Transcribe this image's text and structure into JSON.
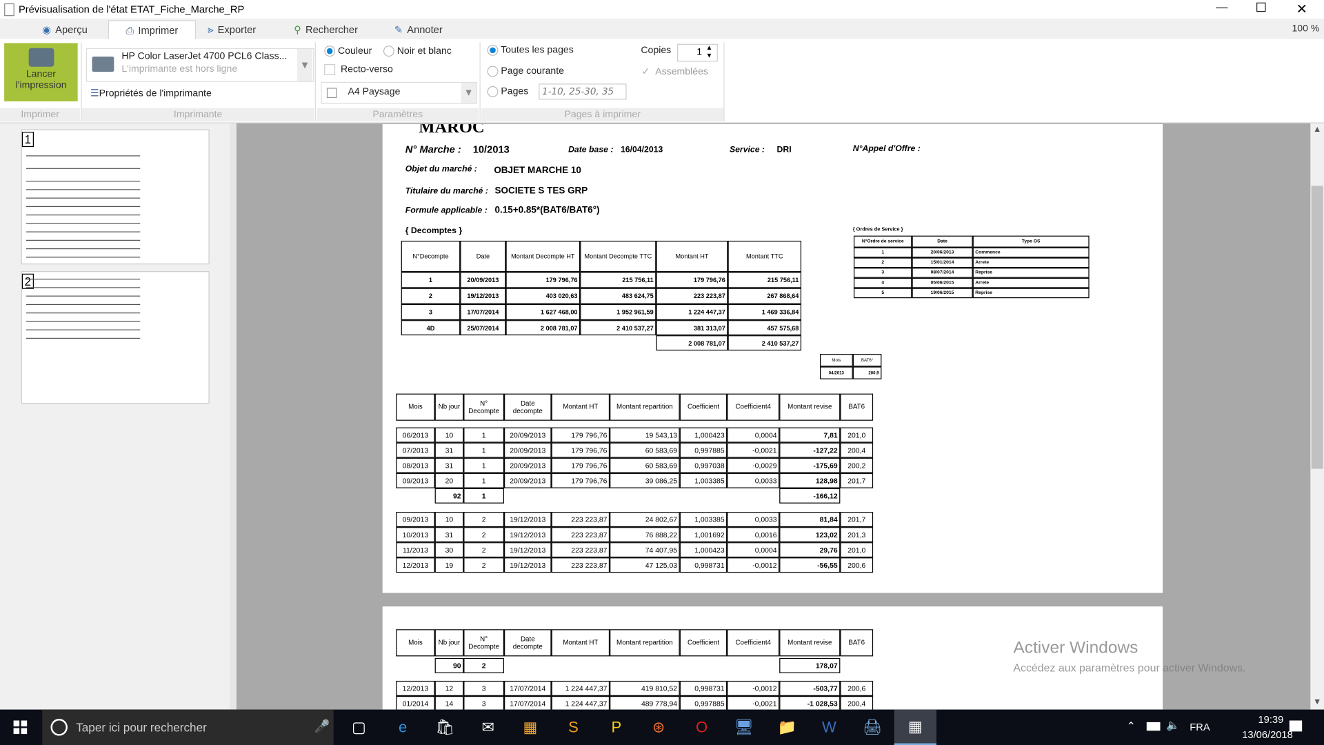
{
  "window": {
    "title": "Prévisualisation de l'état ETAT_Fiche_Marche_RP",
    "zoom": "100 %"
  },
  "tabs": [
    {
      "label": "Aperçu",
      "icon": "eye-icon"
    },
    {
      "label": "Imprimer",
      "icon": "printer-icon",
      "active": true
    },
    {
      "label": "Exporter",
      "icon": "share-icon"
    },
    {
      "label": "Rechercher",
      "icon": "search-icon"
    },
    {
      "label": "Annoter",
      "icon": "pen-icon"
    }
  ],
  "ribbon": {
    "print_button": "Lancer l'impression",
    "printer_name": "HP Color LaserJet 4700 PCL6 Class...",
    "printer_status": "L'imprimante est hors ligne",
    "printer_properties": "Propriétés de l'imprimante",
    "color": "Couleur",
    "bw": "Noir et blanc",
    "duplex": "Recto-verso",
    "paper": "A4 Paysage",
    "all_pages": "Toutes les pages",
    "current_page": "Page courante",
    "pages": "Pages",
    "pages_placeholder": "1-10, 25-30, 35",
    "copies_label": "Copies",
    "copies_value": "1",
    "collated": "Assemblées",
    "groups": [
      "Imprimer",
      "Imprimante",
      "Paramètres",
      "Pages à imprimer"
    ],
    "accent": "#a6c23a"
  },
  "thumbnails": [
    "1",
    "2"
  ],
  "page1": {
    "header": {
      "country": "MAROC",
      "marche_label": "N° Marche :",
      "marche_value": "10/2013",
      "date_base_label": "Date base :",
      "date_base_value": "16/04/2013",
      "service_label": "Service :",
      "service_value": "DRI",
      "appel_label": "N°Appel d'Offre :",
      "objet_label": "Objet du marché :",
      "objet_value": "OBJET MARCHE 10",
      "titulaire_label": "Titulaire du marché :",
      "titulaire_value": "SOCIETE S TES GRP",
      "formule_label": "Formule applicable :",
      "formule_value": "0.15+0.85*(BAT6/BAT6°)",
      "decomptes_label": "{  Decomptes  }"
    },
    "decomptes": {
      "headers": [
        "N°Decompte",
        "Date",
        "Montant Decompte HT",
        "Montant Decompte TTC",
        "Montant HT",
        "Montant TTC"
      ],
      "rows": [
        [
          "1",
          "20/09/2013",
          "179 796,76",
          "215 756,11",
          "179 796,76",
          "215 756,11"
        ],
        [
          "2",
          "19/12/2013",
          "403 020,63",
          "483 624,75",
          "223 223,87",
          "267 868,64"
        ],
        [
          "3",
          "17/07/2014",
          "1 627 468,00",
          "1 952 961,59",
          "1 224 447,37",
          "1 469 336,84"
        ],
        [
          "4D",
          "25/07/2014",
          "2 008 781,07",
          "2 410 537,27",
          "381 313,07",
          "457 575,68"
        ]
      ],
      "totals": [
        "2 008 781,07",
        "2 410 537,27"
      ]
    },
    "ordres": {
      "label": "{  Ordres de Service  }",
      "headers": [
        "N°Ordre de service",
        "Date",
        "Type OS"
      ],
      "rows": [
        [
          "1",
          "20/06/2013",
          "Commence"
        ],
        [
          "2",
          "15/01/2014",
          "Arrete"
        ],
        [
          "3",
          "08/07/2014",
          "Reprise"
        ],
        [
          "4",
          "05/06/2015",
          "Arrete"
        ],
        [
          "5",
          "19/06/2015",
          "Reprise"
        ]
      ]
    },
    "bat": {
      "headers": [
        "Mois",
        "BAT6°"
      ],
      "row": [
        "04/2013",
        "200,9"
      ]
    },
    "revision": {
      "headers": [
        "Mois",
        "Nb jour",
        "N° Decompte",
        "Date decompte",
        "Montant HT",
        "Montant repartition",
        "Coefficient",
        "Coefficient4",
        "Montant revise",
        "BAT6"
      ],
      "block1": [
        [
          "06/2013",
          "10",
          "1",
          "20/09/2013",
          "179 796,76",
          "19 543,13",
          "1,000423",
          "0,0004",
          "7,81",
          "201,0"
        ],
        [
          "07/2013",
          "31",
          "1",
          "20/09/2013",
          "179 796,76",
          "60 583,69",
          "0,997885",
          "-0,0021",
          "-127,22",
          "200,4"
        ],
        [
          "08/2013",
          "31",
          "1",
          "20/09/2013",
          "179 796,76",
          "60 583,69",
          "0,997038",
          "-0,0029",
          "-175,69",
          "200,2"
        ],
        [
          "09/2013",
          "20",
          "1",
          "20/09/2013",
          "179 796,76",
          "39 086,25",
          "1,003385",
          "0,0033",
          "128,98",
          "201,7"
        ]
      ],
      "subtotal1": {
        "nb_jour": "92",
        "decompte": "1",
        "montant_revise": "-166,12"
      },
      "block2": [
        [
          "09/2013",
          "10",
          "2",
          "19/12/2013",
          "223 223,87",
          "24 802,67",
          "1,003385",
          "0,0033",
          "81,84",
          "201,7"
        ],
        [
          "10/2013",
          "31",
          "2",
          "19/12/2013",
          "223 223,87",
          "76 888,22",
          "1,001692",
          "0,0016",
          "123,02",
          "201,3"
        ],
        [
          "11/2013",
          "30",
          "2",
          "19/12/2013",
          "223 223,87",
          "74 407,95",
          "1,000423",
          "0,0004",
          "29,76",
          "201,0"
        ],
        [
          "12/2013",
          "19",
          "2",
          "19/12/2013",
          "223 223,87",
          "47 125,03",
          "0,998731",
          "-0,0012",
          "-56,55",
          "200,6"
        ]
      ]
    }
  },
  "page2": {
    "subtotal2": {
      "nb_jour": "90",
      "decompte": "2",
      "montant_revise": "178,07"
    },
    "block3": [
      [
        "12/2013",
        "12",
        "3",
        "17/07/2014",
        "1 224 447,37",
        "419 810,52",
        "0,998731",
        "-0,0012",
        "-503,77",
        "200,6"
      ],
      [
        "01/2014",
        "14",
        "3",
        "17/07/2014",
        "1 224 447,37",
        "489 778,94",
        "0,997885",
        "-0,0021",
        "-1 028,53",
        "200,4"
      ]
    ]
  },
  "watermark": {
    "title": "Activer Windows",
    "subtitle": "Accédez aux paramètres pour activer Windows."
  },
  "taskbar": {
    "search_placeholder": "Taper ici pour rechercher",
    "language": "FRA",
    "time": "19:39",
    "date": "13/06/2018",
    "apps": [
      "task-view-icon",
      "edge-icon",
      "store-icon",
      "mail-icon",
      "photos-icon",
      "sublime-icon",
      "pdf-icon",
      "app-orange-icon",
      "opera-icon",
      "network-icon",
      "explorer-icon",
      "word-icon",
      "remote-desktop-icon",
      "calendar-app-icon"
    ]
  }
}
